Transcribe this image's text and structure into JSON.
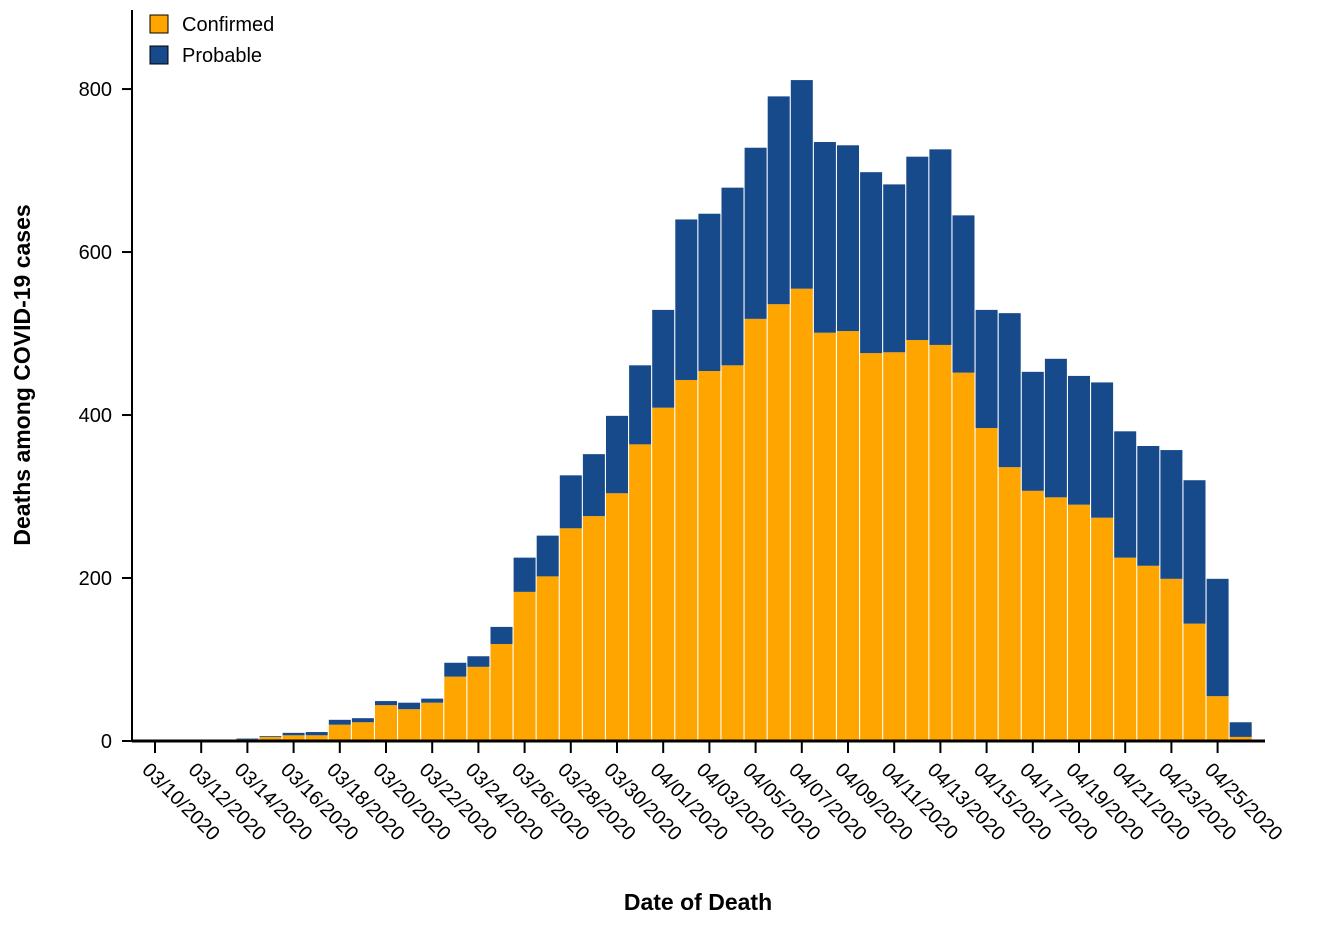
{
  "chart_data": {
    "type": "stacked-bar",
    "x_label": "Date of Death",
    "y_label": "Deaths among COVID-19 cases",
    "categories": [
      "03/10/2020",
      null,
      "03/12/2020",
      null,
      "03/14/2020",
      null,
      "03/16/2020",
      null,
      "03/18/2020",
      null,
      "03/20/2020",
      null,
      "03/22/2020",
      null,
      "03/24/2020",
      null,
      "03/26/2020",
      null,
      "03/28/2020",
      null,
      "03/30/2020",
      null,
      "04/01/2020",
      null,
      "04/03/2020",
      null,
      "04/05/2020",
      null,
      "04/07/2020",
      null,
      "04/09/2020",
      null,
      "04/11/2020",
      null,
      "04/13/2020",
      null,
      "04/15/2020",
      null,
      "04/17/2020",
      null,
      "04/19/2020",
      null,
      "04/21/2020",
      null,
      "04/23/2020",
      null,
      "04/25/2020",
      null
    ],
    "series": [
      {
        "name": "Confirmed",
        "color": "#ffa500",
        "values": [
          1,
          1,
          1,
          1,
          2,
          5,
          7,
          7,
          20,
          23,
          44,
          39,
          47,
          79,
          91,
          119,
          183,
          202,
          261,
          276,
          304,
          364,
          409,
          443,
          454,
          461,
          518,
          536,
          555,
          501,
          503,
          476,
          477,
          492,
          486,
          452,
          384,
          336,
          307,
          299,
          290,
          274,
          225,
          215,
          199,
          144,
          55,
          5
        ]
      },
      {
        "name": "Probable",
        "color": "#174a8b",
        "values": [
          0,
          0,
          0,
          0,
          1,
          1,
          3,
          4,
          6,
          5,
          5,
          8,
          5,
          17,
          13,
          21,
          42,
          50,
          65,
          76,
          95,
          97,
          120,
          197,
          193,
          218,
          210,
          255,
          256,
          234,
          228,
          222,
          206,
          225,
          240,
          193,
          145,
          189,
          146,
          170,
          158,
          166,
          155,
          147,
          158,
          176,
          144,
          18
        ]
      }
    ],
    "ylim": [
      0,
      897
    ],
    "yticks": [
      0,
      200,
      400,
      600,
      800
    ],
    "legend": "top-left"
  }
}
